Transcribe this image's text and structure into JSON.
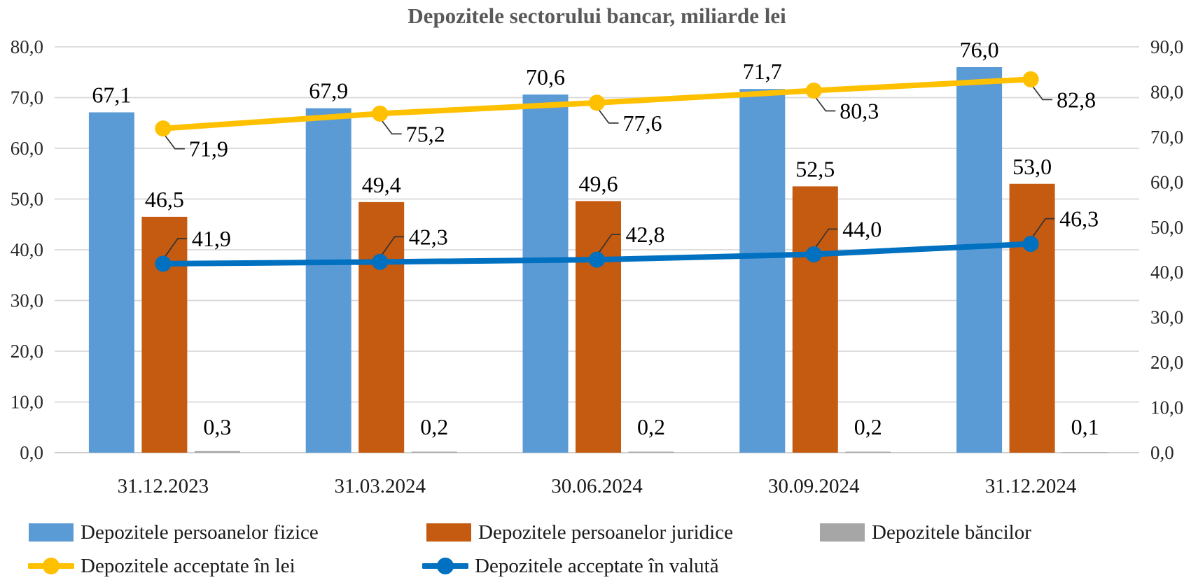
{
  "title": "Depozitele sectorului bancar, miliarde lei",
  "chart_data": {
    "type": "combo_bar_line",
    "title": "Depozitele sectorului bancar, miliarde lei",
    "categories": [
      "31.12.2023",
      "31.03.2024",
      "30.06.2024",
      "30.09.2024",
      "31.12.2024"
    ],
    "bar_series": [
      {
        "name": "Depozitele persoanelor fizice",
        "color": "#5B9BD5",
        "axis": "left",
        "values": [
          67.1,
          67.9,
          70.6,
          71.7,
          76.0
        ]
      },
      {
        "name": "Depozitele persoanelor juridice",
        "color": "#C55A11",
        "axis": "left",
        "values": [
          46.5,
          49.4,
          49.6,
          52.5,
          53.0
        ]
      },
      {
        "name": "Depozitele băncilor",
        "color": "#A6A6A6",
        "axis": "left",
        "values": [
          0.3,
          0.2,
          0.2,
          0.2,
          0.1
        ]
      }
    ],
    "line_series": [
      {
        "name": "Depozitele acceptate în lei",
        "color": "#FFC000",
        "axis": "right",
        "label_side": "below",
        "values": [
          71.9,
          75.2,
          77.6,
          80.3,
          82.8
        ]
      },
      {
        "name": "Depozitele acceptate în valută",
        "color": "#0070C0",
        "axis": "right",
        "label_side": "above",
        "values": [
          41.9,
          42.3,
          42.8,
          44.0,
          46.3
        ]
      }
    ],
    "left_axis": {
      "min": 0,
      "max": 80,
      "step": 10
    },
    "right_axis": {
      "min": 0,
      "max": 90,
      "step": 10
    },
    "decimal_separator": ",",
    "grid": true,
    "legend_position": "bottom",
    "colors": {
      "title_text": "#595959",
      "gridline": "#D9D9D9",
      "axis_line": "#C6C6C6",
      "tick_text": "#262626",
      "data_label_text": "#000000",
      "leader_line": "#333333"
    }
  }
}
